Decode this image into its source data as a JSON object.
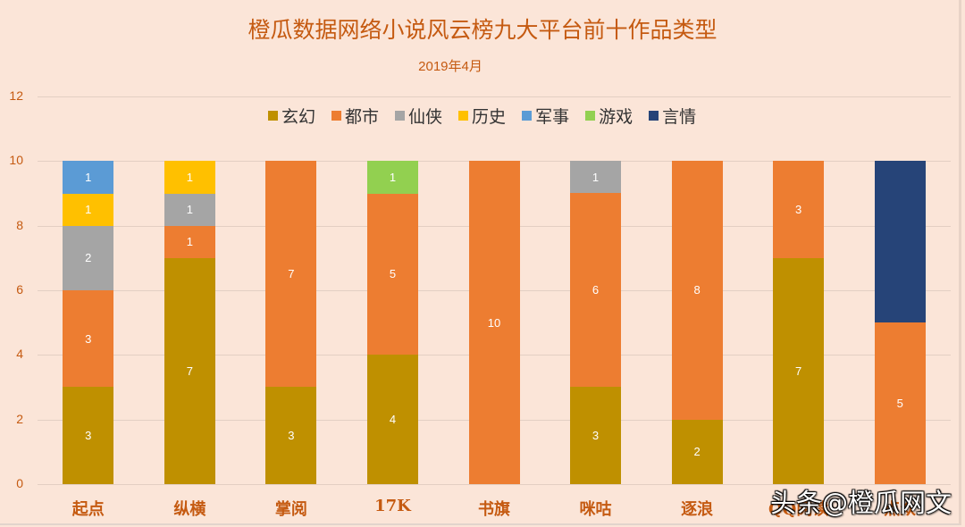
{
  "chart_data": {
    "type": "bar",
    "stacked": true,
    "title": "橙瓜数据网络小说风云榜九大平台前十作品类型",
    "subtitle": "2019年4月",
    "xlabel": "",
    "ylabel": "",
    "ylim": [
      0,
      12
    ],
    "yticks": [
      0,
      2,
      4,
      6,
      8,
      10,
      12
    ],
    "grid": true,
    "legend_position": "top",
    "categories": [
      "起点",
      "纵横",
      "掌阅",
      "17K",
      "书旗",
      "咪咕",
      "逐浪",
      "QQ阅读",
      "点众"
    ],
    "series": [
      {
        "name": "玄幻",
        "color": "#bf9000",
        "values": [
          3,
          7,
          3,
          4,
          0,
          3,
          2,
          7,
          0
        ]
      },
      {
        "name": "都市",
        "color": "#ed7d31",
        "values": [
          3,
          1,
          7,
          5,
          10,
          6,
          8,
          3,
          5
        ]
      },
      {
        "name": "仙侠",
        "color": "#a5a5a5",
        "values": [
          2,
          1,
          0,
          0,
          0,
          1,
          0,
          0,
          0
        ]
      },
      {
        "name": "历史",
        "color": "#ffc000",
        "values": [
          1,
          1,
          0,
          0,
          0,
          0,
          0,
          0,
          0
        ]
      },
      {
        "name": "军事",
        "color": "#5b9bd5",
        "values": [
          1,
          0,
          0,
          0,
          0,
          0,
          0,
          0,
          0
        ]
      },
      {
        "name": "游戏",
        "color": "#92d050",
        "values": [
          0,
          0,
          0,
          1,
          0,
          0,
          0,
          0,
          0
        ]
      },
      {
        "name": "言情",
        "color": "#264478",
        "values": [
          0,
          0,
          0,
          0,
          0,
          0,
          0,
          0,
          5
        ]
      }
    ],
    "hidden_labels": [
      {
        "series": "言情",
        "category": "点众"
      }
    ]
  },
  "watermark": "头条@橙瓜网文",
  "colors": {
    "background": "#fbe5d8",
    "title": "#c55a11",
    "grid": "#e3cfc3"
  }
}
